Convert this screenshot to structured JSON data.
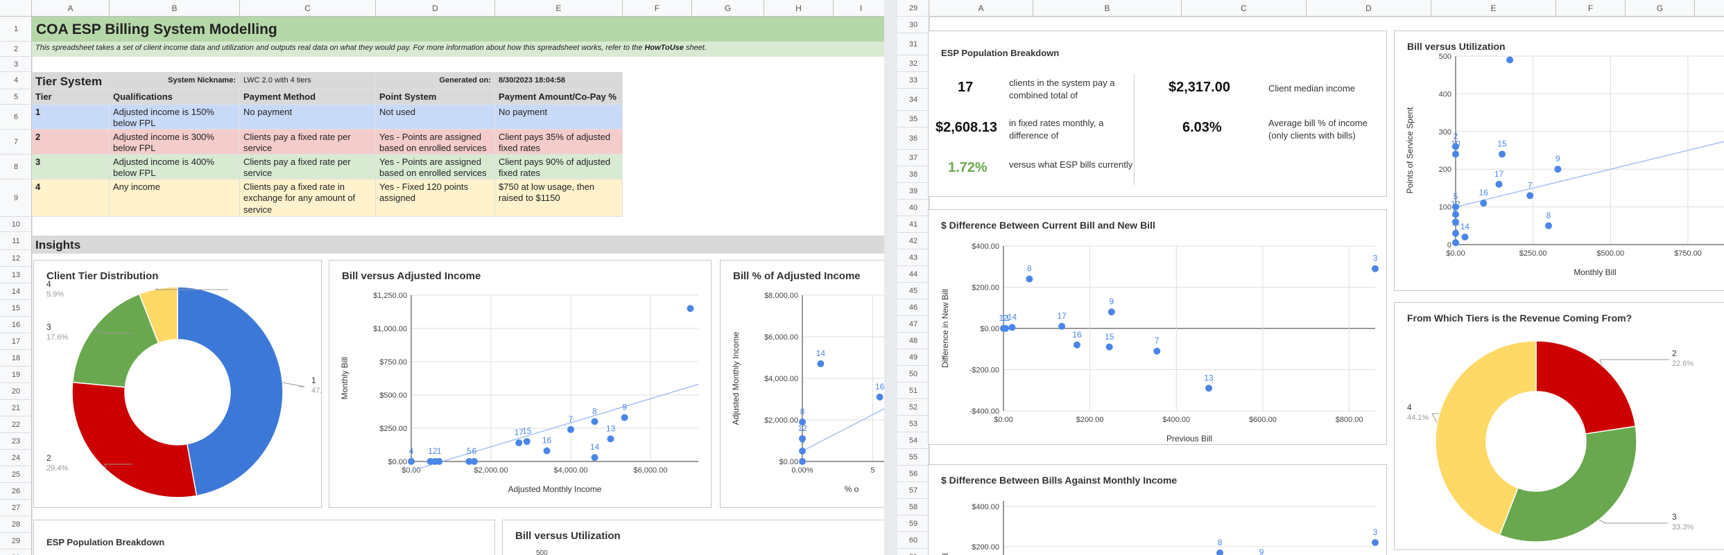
{
  "columns_left": [
    "A",
    "B",
    "C",
    "D",
    "E",
    "F",
    "G",
    "H",
    "I"
  ],
  "columns_right": [
    "A",
    "B",
    "C",
    "D",
    "E",
    "F",
    "G",
    "H"
  ],
  "rows_left": [
    "1",
    "2",
    "3",
    "4",
    "5",
    "6",
    "7",
    "8",
    "9",
    "10",
    "11",
    "12",
    "13",
    "14",
    "15",
    "16",
    "17",
    "18",
    "19",
    "20",
    "21",
    "22",
    "23",
    "24",
    "25",
    "26",
    "27",
    "28",
    "29",
    "30",
    "31"
  ],
  "rows_right": [
    "29",
    "30",
    "31",
    "32",
    "33",
    "34",
    "35",
    "36",
    "37",
    "38",
    "39",
    "40",
    "41",
    "42",
    "43",
    "44",
    "45",
    "46",
    "47",
    "48",
    "49",
    "50",
    "51",
    "52",
    "53",
    "54",
    "55",
    "56",
    "57",
    "58",
    "59",
    "60",
    "61"
  ],
  "sheet": {
    "title": "COA ESP Billing System Modelling",
    "description": "This spreadsheet takes a set of client income data and utilization and outputs real data on what they would pay. For more information about how this spreadsheet works, refer to the ",
    "description_link": "HowToUse",
    "description_end": " sheet.",
    "tier_system_label": "Tier System",
    "nickname_label": "System Nickname:",
    "nickname_value": "LWC 2.0 with 4 tiers",
    "generated_label": "Generated on:",
    "generated_value": "8/30/2023 18:04:58",
    "headers": [
      "Tier",
      "Qualifications",
      "Payment Method",
      "Point System",
      "Payment Amount/Co-Pay %"
    ],
    "tiers": [
      {
        "tier": "1",
        "qual": "Adjusted income is 150% below FPL",
        "method": "No payment",
        "points": "Not used",
        "amount": "No payment",
        "color": "#c9daf8"
      },
      {
        "tier": "2",
        "qual": "Adjusted income is 300% below FPL",
        "method": "Clients pay a fixed rate per service",
        "points": "Yes - Points are assigned based on enrolled services",
        "amount": "Client pays 35% of adjusted fixed rates",
        "color": "#f4cccc"
      },
      {
        "tier": "3",
        "qual": "Adjusted income is 400% below FPL",
        "method": "Clients pay a fixed rate per service",
        "points": "Yes - Points are assigned based on enrolled services",
        "amount": "Client pays 90% of adjusted fixed rates",
        "color": "#d9ead3"
      },
      {
        "tier": "4",
        "qual": "Any income",
        "method": "Clients pay a fixed rate in exchange for any amount of service",
        "points": "Yes - Fixed 120 points assigned",
        "amount": "$750 at low usage, then raised to $1150",
        "color": "#fff2cc"
      }
    ],
    "insights_label": "Insights"
  },
  "colors": {
    "title_bg": "#b6d7a8",
    "desc_bg": "#d9ead3",
    "header_bg": "#d9d9d9",
    "blue": "#3c78d8",
    "red": "#cc0000",
    "green": "#6aa84f",
    "yellow": "#ffd966",
    "point": "#4a86e8",
    "trend": "#a4c2f4"
  },
  "population": {
    "title": "ESP Population Breakdown",
    "clients": "17",
    "clients_text": "clients in the system pay a combined total of",
    "fixed_total": "$2,608.13",
    "fixed_text": "in fixed rates monthly, a difference of",
    "diff_pct": "1.72%",
    "diff_text": "versus what ESP bills currently",
    "median": "$2,317.00",
    "median_text": "Client median income",
    "avg_pct": "6.03%",
    "avg_text": "Average bill % of income (only clients with bills)"
  },
  "left_partial": {
    "pop_title": "ESP Population Breakdown",
    "util_title": "Bill versus Utilization",
    "util_tick": "500"
  },
  "right_partial": {
    "title": "$ Difference Between Bills Against Monthly Income",
    "yticks": [
      "$400.00",
      "$200.00"
    ],
    "ylabel": "y Bill"
  },
  "chart_data": [
    {
      "id": "tier_dist",
      "type": "pie",
      "title": "Client Tier Distribution",
      "slices": [
        {
          "label": "1",
          "pct": "47.1%",
          "value": 47.1,
          "color": "#3c78d8"
        },
        {
          "label": "2",
          "pct": "29.4%",
          "value": 29.4,
          "color": "#cc0000"
        },
        {
          "label": "3",
          "pct": "17.6%",
          "value": 17.6,
          "color": "#6aa84f"
        },
        {
          "label": "4",
          "pct": "5.9%",
          "value": 5.9,
          "color": "#ffd966"
        }
      ]
    },
    {
      "id": "bill_income",
      "type": "scatter",
      "title": "Bill versus Adjusted Income",
      "xlabel": "Adjusted Monthly Income",
      "ylabel": "Monthly Bill",
      "xticks": [
        "$0.00",
        "$2,000.00",
        "$4,000.00",
        "$6,000.00"
      ],
      "xlim": [
        0,
        7200
      ],
      "yticks": [
        "$0.00",
        "$250.00",
        "$500.00",
        "$750.00",
        "$1,000.00",
        "$1,250.00"
      ],
      "ylim": [
        0,
        1250
      ],
      "points": [
        {
          "x": 0,
          "y": 0,
          "l": "4"
        },
        {
          "x": 480,
          "y": 0,
          "l": "1"
        },
        {
          "x": 600,
          "y": 0,
          "l": "2"
        },
        {
          "x": 700,
          "y": 0,
          "l": "1"
        },
        {
          "x": 1450,
          "y": 0,
          "l": "5"
        },
        {
          "x": 1580,
          "y": 0,
          "l": "6"
        },
        {
          "x": 2700,
          "y": 140,
          "l": "17"
        },
        {
          "x": 2900,
          "y": 150,
          "l": "15"
        },
        {
          "x": 3400,
          "y": 80,
          "l": "16"
        },
        {
          "x": 4000,
          "y": 240,
          "l": "7"
        },
        {
          "x": 4600,
          "y": 300,
          "l": "8"
        },
        {
          "x": 4600,
          "y": 30,
          "l": "14"
        },
        {
          "x": 5000,
          "y": 170,
          "l": "13"
        },
        {
          "x": 5350,
          "y": 330,
          "l": "9"
        },
        {
          "x": 7000,
          "y": 1150,
          "l": ""
        }
      ],
      "trend": [
        [
          0,
          -70
        ],
        [
          7200,
          580
        ]
      ]
    },
    {
      "id": "bill_pct",
      "type": "scatter",
      "title": "Bill % of Adjusted Income",
      "ylabel": "Adjusted Monthly Income",
      "xlabel": "% o",
      "yticks": [
        "$0.00",
        "$2,000.00",
        "$4,000.00",
        "$6,000.00",
        "$8,000.00"
      ],
      "ylim": [
        0,
        8000
      ],
      "xticks": [
        "0.00%",
        "5"
      ],
      "xlim": [
        0,
        7
      ],
      "points": [
        {
          "x": 0,
          "y": 0,
          "l": ""
        },
        {
          "x": 0,
          "y": 500,
          "l": "4"
        },
        {
          "x": 0,
          "y": 1100,
          "l": "12"
        },
        {
          "x": 0,
          "y": 1900,
          "l": "8"
        },
        {
          "x": 1.3,
          "y": 4700,
          "l": "14"
        },
        {
          "x": 5.5,
          "y": 3100,
          "l": "16"
        },
        {
          "x": 6.5,
          "y": 5000,
          "l": "13"
        }
      ],
      "trend": [
        [
          0,
          500
        ],
        [
          8,
          3300
        ]
      ]
    },
    {
      "id": "bill_util",
      "type": "scatter",
      "title": "Bill versus Utilization",
      "xlabel": "Monthly Bill",
      "ylabel": "Points of Service Spent",
      "xticks": [
        "$0.00",
        "$250.00",
        "$500.00",
        "$750.00"
      ],
      "xlim": [
        0,
        900
      ],
      "yticks": [
        "0",
        "100",
        "200",
        "300",
        "400",
        "500"
      ],
      "ylim": [
        0,
        500
      ],
      "points": [
        {
          "x": 0,
          "y": 5,
          "l": "4"
        },
        {
          "x": 0,
          "y": 30,
          "l": "11"
        },
        {
          "x": 0,
          "y": 60,
          "l": "6"
        },
        {
          "x": 0,
          "y": 80,
          "l": "12"
        },
        {
          "x": 0,
          "y": 100,
          "l": "5"
        },
        {
          "x": 0,
          "y": 240,
          "l": "10"
        },
        {
          "x": 0,
          "y": 260,
          "l": "2"
        },
        {
          "x": 30,
          "y": 20,
          "l": "14"
        },
        {
          "x": 90,
          "y": 110,
          "l": "16"
        },
        {
          "x": 140,
          "y": 160,
          "l": "17"
        },
        {
          "x": 150,
          "y": 240,
          "l": "15"
        },
        {
          "x": 175,
          "y": 490,
          "l": ""
        },
        {
          "x": 240,
          "y": 130,
          "l": "7"
        },
        {
          "x": 300,
          "y": 50,
          "l": "8"
        },
        {
          "x": 330,
          "y": 200,
          "l": "9"
        }
      ],
      "trend": [
        [
          0,
          100
        ],
        [
          900,
          280
        ]
      ]
    },
    {
      "id": "diff_bill",
      "type": "scatter",
      "title": "$ Difference Between Current Bill and New Bill",
      "xlabel": "Previous Bill",
      "ylabel": "Difference in New Bill",
      "xticks": [
        "$0.00",
        "$200.00",
        "$400.00",
        "$600.00",
        "$800.00"
      ],
      "xlim": [
        0,
        860
      ],
      "yticks": [
        "-$400.00",
        "-$200.00",
        "$0.00",
        "$200.00",
        "$400.00"
      ],
      "ylim": [
        -400,
        400
      ],
      "points": [
        {
          "x": 0,
          "y": 0,
          "l": "12"
        },
        {
          "x": 5,
          "y": 0,
          "l": "11"
        },
        {
          "x": 20,
          "y": 5,
          "l": "14"
        },
        {
          "x": 60,
          "y": 240,
          "l": "8"
        },
        {
          "x": 135,
          "y": 10,
          "l": "17"
        },
        {
          "x": 170,
          "y": -80,
          "l": "16"
        },
        {
          "x": 245,
          "y": -90,
          "l": "15"
        },
        {
          "x": 250,
          "y": 80,
          "l": "9"
        },
        {
          "x": 355,
          "y": -110,
          "l": "7"
        },
        {
          "x": 475,
          "y": -290,
          "l": "13"
        },
        {
          "x": 860,
          "y": 290,
          "l": "3"
        }
      ]
    },
    {
      "id": "revenue_tiers",
      "type": "pie",
      "title": "From Which Tiers is the Revenue Coming From?",
      "slices": [
        {
          "label": "2",
          "pct": "22.6%",
          "value": 22.6,
          "color": "#cc0000"
        },
        {
          "label": "3",
          "pct": "33.3%",
          "value": 33.3,
          "color": "#6aa84f"
        },
        {
          "label": "4",
          "pct": "44.1%",
          "value": 44.1,
          "color": "#ffd966"
        }
      ]
    }
  ]
}
